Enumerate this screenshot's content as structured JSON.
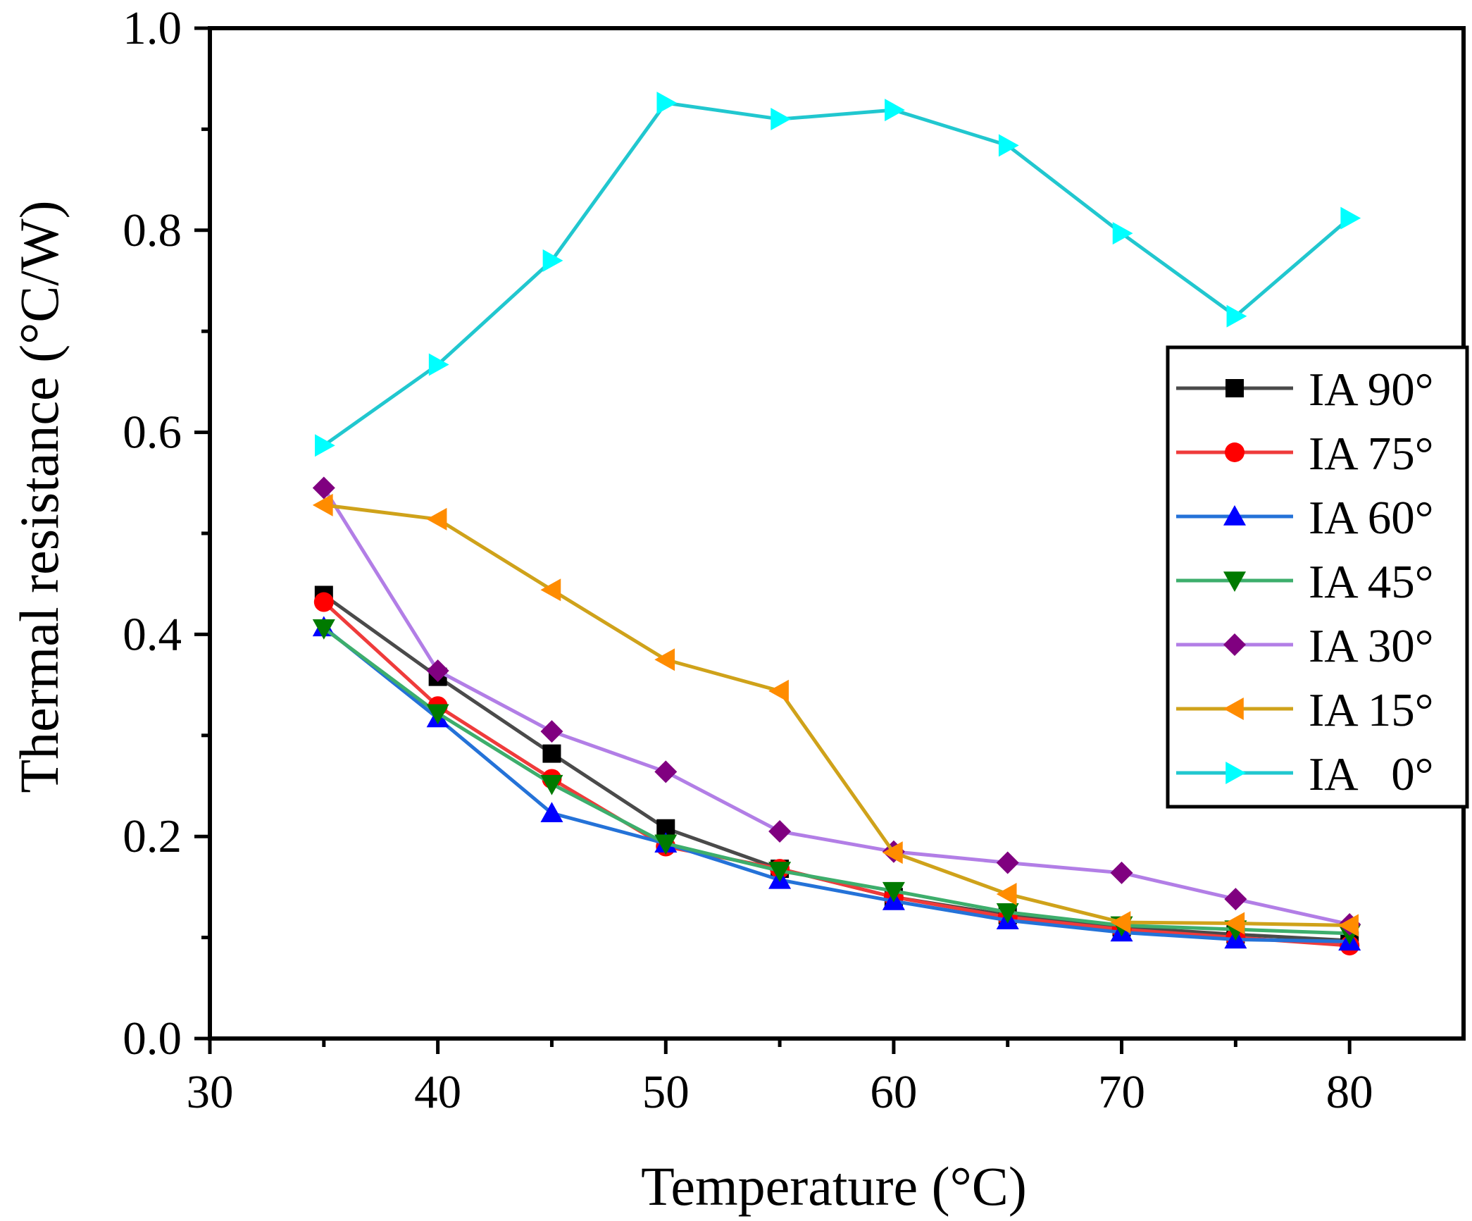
{
  "chart_data": {
    "type": "line",
    "title": "",
    "xlabel": "Temperature (°C)",
    "ylabel": "Thermal resistance (°C/W)",
    "xlim": [
      30,
      85
    ],
    "ylim": [
      0.0,
      1.0
    ],
    "xticks": [
      30,
      40,
      50,
      60,
      70,
      80
    ],
    "xtick_labels": [
      "30",
      "40",
      "50",
      "60",
      "70",
      "80"
    ],
    "yticks": [
      0.0,
      0.2,
      0.4,
      0.6,
      0.8,
      1.0
    ],
    "ytick_labels": [
      "0.0",
      "0.2",
      "0.4",
      "0.6",
      "0.8",
      "1.0"
    ],
    "grid": false,
    "legend_position": "right",
    "x": [
      35,
      40,
      45,
      50,
      55,
      60,
      65,
      70,
      75,
      80
    ],
    "series": [
      {
        "name": "IA 90°",
        "line_color": "#4a4a4a",
        "marker_color": "#000000",
        "marker": "square",
        "values": [
          0.439,
          0.358,
          0.282,
          0.208,
          0.168,
          0.14,
          0.122,
          0.11,
          0.103,
          0.097
        ]
      },
      {
        "name": "IA 75°",
        "line_color": "#ef3b3b",
        "marker_color": "#ff0000",
        "marker": "circle",
        "values": [
          0.432,
          0.329,
          0.257,
          0.19,
          0.168,
          0.14,
          0.12,
          0.108,
          0.1,
          0.092
        ]
      },
      {
        "name": "IA 60°",
        "line_color": "#2472d8",
        "marker_color": "#0000ff",
        "marker": "triangle-up",
        "values": [
          0.407,
          0.317,
          0.223,
          0.193,
          0.157,
          0.136,
          0.117,
          0.105,
          0.098,
          0.096
        ]
      },
      {
        "name": "IA 45°",
        "line_color": "#3dae6c",
        "marker_color": "#007a00",
        "marker": "triangle-down",
        "values": [
          0.406,
          0.322,
          0.252,
          0.193,
          0.166,
          0.146,
          0.125,
          0.112,
          0.108,
          0.104
        ]
      },
      {
        "name": "IA 30°",
        "line_color": "#b27ee6",
        "marker_color": "#800080",
        "marker": "diamond",
        "values": [
          0.545,
          0.364,
          0.304,
          0.264,
          0.205,
          0.185,
          0.174,
          0.164,
          0.138,
          0.113
        ]
      },
      {
        "name": "IA 15°",
        "line_color": "#cfa21a",
        "marker_color": "#ff8c00",
        "marker": "triangle-left",
        "values": [
          0.528,
          0.514,
          0.444,
          0.375,
          0.344,
          0.184,
          0.143,
          0.115,
          0.114,
          0.112
        ]
      },
      {
        "name": "IA   0°",
        "line_color": "#21c7cf",
        "marker_color": "#00ffff",
        "marker": "triangle-right",
        "values": [
          0.587,
          0.667,
          0.77,
          0.926,
          0.91,
          0.919,
          0.884,
          0.797,
          0.715,
          0.812
        ]
      }
    ]
  }
}
